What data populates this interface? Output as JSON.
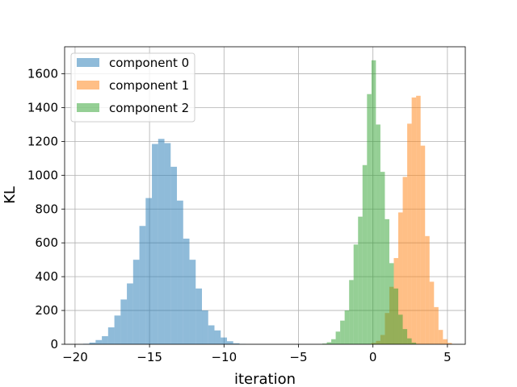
{
  "chart_data": {
    "type": "bar",
    "title": "",
    "xlabel": "iteration",
    "ylabel": "KL",
    "xlim": [
      -20.7,
      6.2
    ],
    "ylim": [
      0,
      1760
    ],
    "xticks": [
      -20,
      -15,
      -10,
      -5,
      0,
      5
    ],
    "yticks": [
      0,
      200,
      400,
      600,
      800,
      1000,
      1200,
      1400,
      1600
    ],
    "grid": true,
    "legend": "top-left",
    "series": [
      {
        "name": "component 0",
        "color": "#1f77b4",
        "opacity": 0.5,
        "bin_width": 0.42,
        "bins": [
          [
            -19.25,
            3
          ],
          [
            -18.83,
            10
          ],
          [
            -18.41,
            25
          ],
          [
            -17.99,
            48
          ],
          [
            -17.57,
            100
          ],
          [
            -17.15,
            170
          ],
          [
            -16.73,
            265
          ],
          [
            -16.31,
            360
          ],
          [
            -15.89,
            500
          ],
          [
            -15.47,
            700
          ],
          [
            -15.05,
            865
          ],
          [
            -14.63,
            1185
          ],
          [
            -14.21,
            1215
          ],
          [
            -13.79,
            1190
          ],
          [
            -13.37,
            1050
          ],
          [
            -12.95,
            850
          ],
          [
            -12.53,
            625
          ],
          [
            -12.11,
            500
          ],
          [
            -11.69,
            330
          ],
          [
            -11.27,
            200
          ],
          [
            -10.85,
            112
          ],
          [
            -10.43,
            82
          ],
          [
            -10.01,
            40
          ],
          [
            -9.59,
            18
          ],
          [
            -9.17,
            6
          ],
          [
            -8.75,
            2
          ]
        ]
      },
      {
        "name": "component 1",
        "color": "#ff7f0e",
        "opacity": 0.5,
        "bin_width": 0.3,
        "bins": [
          [
            0.05,
            8
          ],
          [
            0.35,
            20
          ],
          [
            0.65,
            55
          ],
          [
            0.95,
            185
          ],
          [
            1.25,
            340
          ],
          [
            1.55,
            510
          ],
          [
            1.85,
            780
          ],
          [
            2.15,
            990
          ],
          [
            2.45,
            1305
          ],
          [
            2.75,
            1460
          ],
          [
            3.05,
            1470
          ],
          [
            3.35,
            1175
          ],
          [
            3.65,
            640
          ],
          [
            3.95,
            370
          ],
          [
            4.25,
            220
          ],
          [
            4.55,
            85
          ],
          [
            4.85,
            30
          ],
          [
            5.15,
            8
          ]
        ]
      },
      {
        "name": "component 2",
        "color": "#2ca02c",
        "opacity": 0.5,
        "bin_width": 0.3,
        "bins": [
          [
            -3.25,
            4
          ],
          [
            -2.95,
            12
          ],
          [
            -2.65,
            30
          ],
          [
            -2.35,
            75
          ],
          [
            -2.05,
            140
          ],
          [
            -1.75,
            200
          ],
          [
            -1.45,
            380
          ],
          [
            -1.15,
            590
          ],
          [
            -0.85,
            755
          ],
          [
            -0.55,
            1060
          ],
          [
            -0.25,
            1480
          ],
          [
            0.05,
            1680
          ],
          [
            0.35,
            1300
          ],
          [
            0.65,
            1020
          ],
          [
            0.95,
            740
          ],
          [
            1.25,
            480
          ],
          [
            1.55,
            330
          ],
          [
            1.85,
            175
          ],
          [
            2.15,
            90
          ],
          [
            2.45,
            35
          ],
          [
            2.75,
            10
          ]
        ]
      }
    ]
  }
}
